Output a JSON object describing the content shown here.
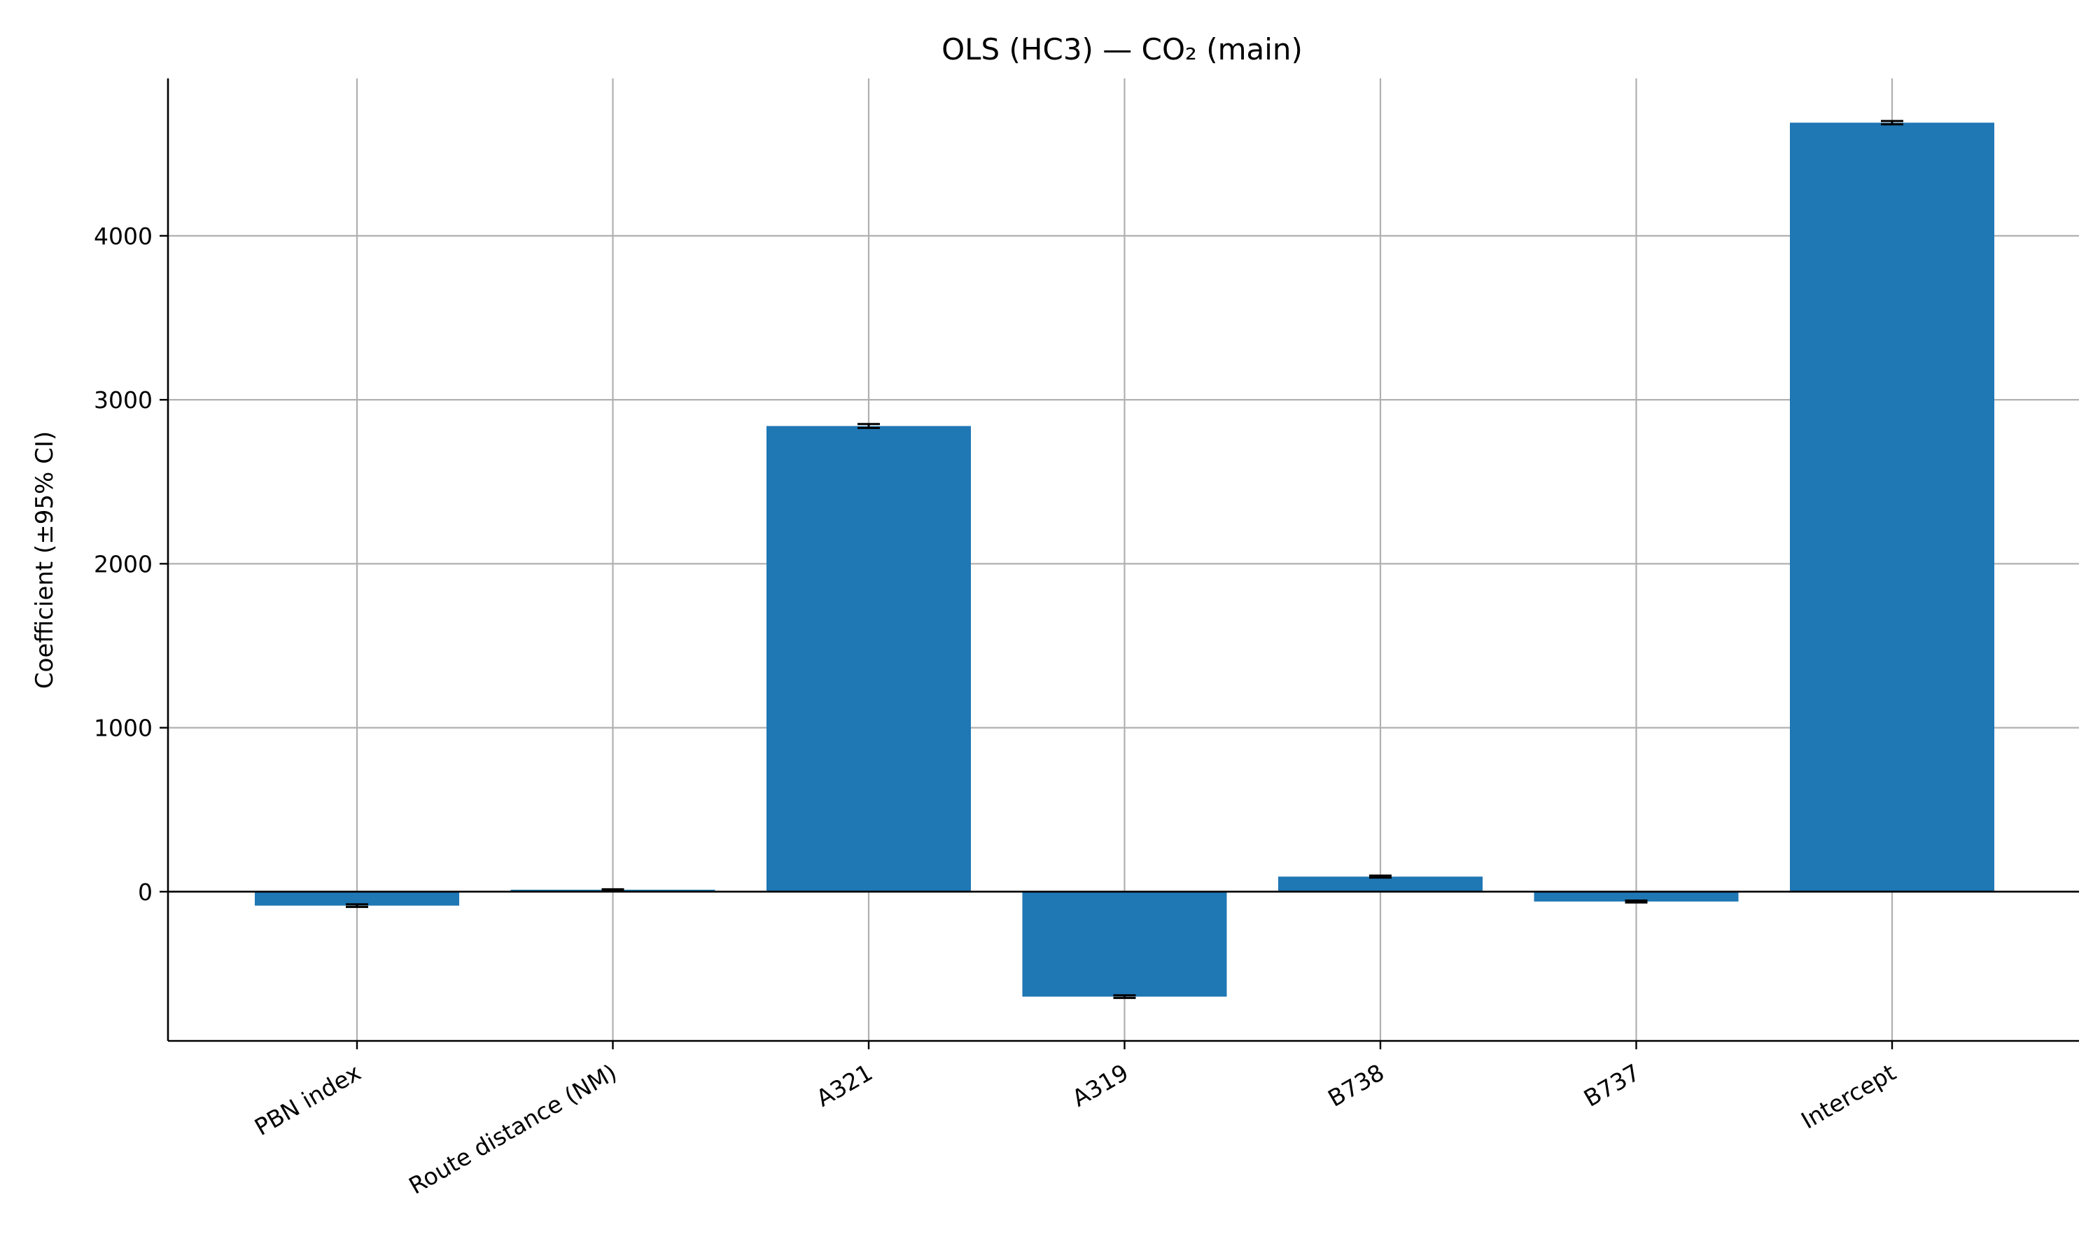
{
  "chart_data": {
    "type": "bar",
    "title": "OLS (HC3) — CO₂ (main)",
    "xlabel": "",
    "ylabel": "Coefficient (±95% CI)",
    "categories": [
      "PBN index",
      "Route distance (NM)",
      "A321",
      "A319",
      "B738",
      "B737",
      "Intercept"
    ],
    "values": [
      -85,
      12,
      2840,
      -640,
      92,
      -60,
      4690
    ],
    "ci_half_width": [
      8,
      3,
      12,
      8,
      6,
      6,
      10
    ],
    "ylim": [
      -910,
      4960
    ],
    "yticks": [
      0,
      1000,
      2000,
      3000,
      4000
    ],
    "grid": true,
    "zero_line": true,
    "bar_color": "#1f77b4"
  }
}
